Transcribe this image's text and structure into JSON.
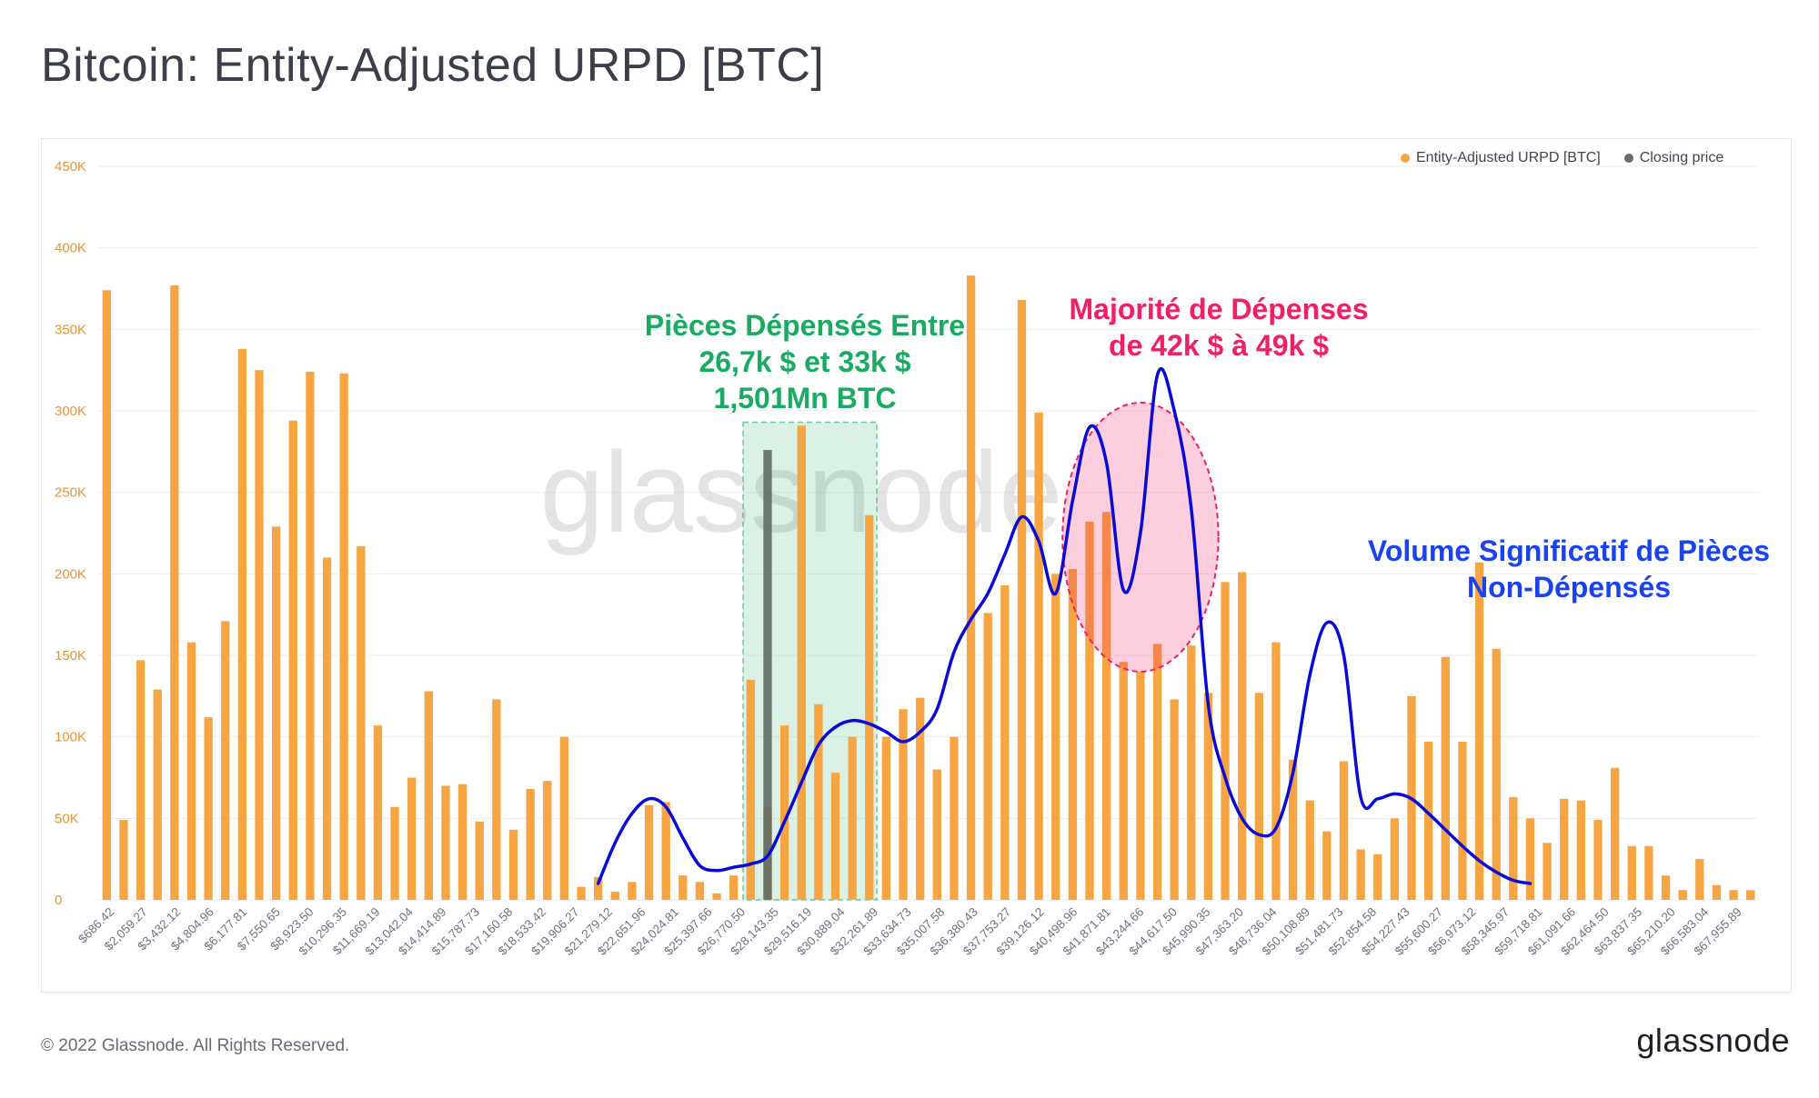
{
  "title": "Bitcoin: Entity-Adjusted URPD [BTC]",
  "footer": {
    "copyright": "© 2022 Glassnode. All Rights Reserved.",
    "logo": "glassnode"
  },
  "watermark": "glassnode",
  "legend": {
    "items": [
      {
        "label": "Entity-Adjusted URPD [BTC]",
        "color": "#f7a542"
      },
      {
        "label": "Closing price",
        "color": "#6b6b6b"
      }
    ]
  },
  "annotations": {
    "green": {
      "lines": [
        "Pièces Dépensés Entre",
        "26,7k $ et 33k $",
        "1,501Mn BTC"
      ],
      "color": "#1aab62"
    },
    "red": {
      "lines": [
        "Majorité de Dépenses",
        "de 42k $ à 49k $"
      ],
      "color": "#f01f67"
    },
    "blue": {
      "lines": [
        "Volume Significatif de Pièces",
        "Non-Dépensés"
      ],
      "color": "#1a43f0"
    }
  },
  "chart_data": {
    "type": "bar",
    "ylim": [
      0,
      450000
    ],
    "y_ticks": [
      0,
      50000,
      100000,
      150000,
      200000,
      250000,
      300000,
      350000,
      400000,
      450000
    ],
    "y_tick_labels": [
      "0",
      "50K",
      "100K",
      "150K",
      "200K",
      "250K",
      "300K",
      "350K",
      "400K",
      "450K"
    ],
    "x_tick_labels": [
      "$686.42",
      "$2,059.27",
      "$3,432.12",
      "$4,804.96",
      "$6,177.81",
      "$7,550.65",
      "$8,923.50",
      "$10,296.35",
      "$11,669.19",
      "$13,042.04",
      "$14,414.89",
      "$15,787.73",
      "$17,160.58",
      "$18,533.42",
      "$19,906.27",
      "$21,279.12",
      "$22,651.96",
      "$24,024.81",
      "$25,397.66",
      "$26,770.50",
      "$28,143.35",
      "$29,516.19",
      "$30,889.04",
      "$32,261.89",
      "$33,634.73",
      "$35,007.58",
      "$36,380.43",
      "$37,753.27",
      "$39,126.12",
      "$40,498.96",
      "$41,871.81",
      "$43,244.66",
      "$44,617.50",
      "$45,990.35",
      "$47,363.20",
      "$48,736.04",
      "$50,108.89",
      "$51,481.73",
      "$52,854.58",
      "$54,227.43",
      "$55,600.27",
      "$56,973.12",
      "$58,345.97",
      "$59,718.81",
      "$61,091.66",
      "$62,464.50",
      "$63,837.35",
      "$65,210.20",
      "$66,583.04",
      "$67,955.89"
    ],
    "series": [
      {
        "name": "Entity-Adjusted URPD [BTC]",
        "color": "#f7a542",
        "values": [
          374000,
          49000,
          147000,
          129000,
          377000,
          158000,
          112000,
          171000,
          338000,
          325000,
          229000,
          294000,
          324000,
          210000,
          323000,
          217000,
          107000,
          57000,
          75000,
          128000,
          70000,
          71000,
          48000,
          123000,
          43000,
          68000,
          73000,
          100000,
          8000,
          14000,
          5000,
          11000,
          58000,
          60000,
          15000,
          11000,
          4000,
          15000,
          135000,
          57000,
          107000,
          291000,
          120000,
          78000,
          100000,
          236000,
          100000,
          117000,
          124000,
          80000,
          100000,
          383000,
          176000,
          193000,
          368000,
          299000,
          200000,
          203000,
          232000,
          238000,
          146000,
          140000,
          157000,
          123000,
          156000,
          127000,
          195000,
          201000,
          127000,
          158000,
          86000,
          61000,
          42000,
          85000,
          31000,
          28000,
          50000,
          125000,
          97000,
          149000,
          97000,
          207000,
          154000,
          63000,
          50000,
          35000,
          62000,
          61000,
          49000,
          81000,
          33000,
          33000,
          15000,
          6000,
          25000,
          9000,
          6000,
          6000
        ]
      },
      {
        "name": "Closing price",
        "color": "#5f6b66",
        "bar_index": 39,
        "value": 276000
      }
    ],
    "trend_curve": {
      "color": "#0a0ad6",
      "points": [
        [
          29,
          10000
        ],
        [
          30,
          35000
        ],
        [
          31,
          53000
        ],
        [
          32,
          62000
        ],
        [
          33,
          57000
        ],
        [
          34,
          38000
        ],
        [
          35,
          21000
        ],
        [
          36,
          18000
        ],
        [
          37,
          20000
        ],
        [
          38,
          22000
        ],
        [
          39,
          27000
        ],
        [
          40,
          48000
        ],
        [
          41,
          72000
        ],
        [
          42,
          95000
        ],
        [
          43,
          106000
        ],
        [
          44,
          110000
        ],
        [
          45,
          108000
        ],
        [
          46,
          103000
        ],
        [
          47,
          97000
        ],
        [
          48,
          103000
        ],
        [
          49,
          117000
        ],
        [
          50,
          152000
        ],
        [
          51,
          172000
        ],
        [
          52,
          188000
        ],
        [
          53,
          212000
        ],
        [
          54,
          235000
        ],
        [
          55,
          220000
        ],
        [
          56,
          188000
        ],
        [
          57,
          245000
        ],
        [
          58,
          290000
        ],
        [
          59,
          268000
        ],
        [
          60,
          190000
        ],
        [
          61,
          225000
        ],
        [
          62,
          322000
        ],
        [
          63,
          300000
        ],
        [
          64,
          240000
        ],
        [
          65,
          120000
        ],
        [
          66,
          75000
        ],
        [
          67,
          50000
        ],
        [
          68,
          40000
        ],
        [
          69,
          44000
        ],
        [
          70,
          78000
        ],
        [
          71,
          138000
        ],
        [
          72,
          170000
        ],
        [
          73,
          150000
        ],
        [
          74,
          63000
        ],
        [
          75,
          62000
        ],
        [
          76,
          65000
        ],
        [
          77,
          62000
        ],
        [
          78,
          53000
        ],
        [
          79,
          43000
        ],
        [
          80,
          33000
        ],
        [
          81,
          24000
        ],
        [
          82,
          17000
        ],
        [
          83,
          12000
        ],
        [
          84,
          10000
        ]
      ]
    },
    "highlight_range": {
      "from_bar": 38,
      "to_bar": 45,
      "color": "#1aab62"
    },
    "highlight_ellipse": {
      "from_bar": 57,
      "to_bar": 65,
      "y_min": 140000,
      "y_max": 305000,
      "color": "#f01f67"
    }
  }
}
